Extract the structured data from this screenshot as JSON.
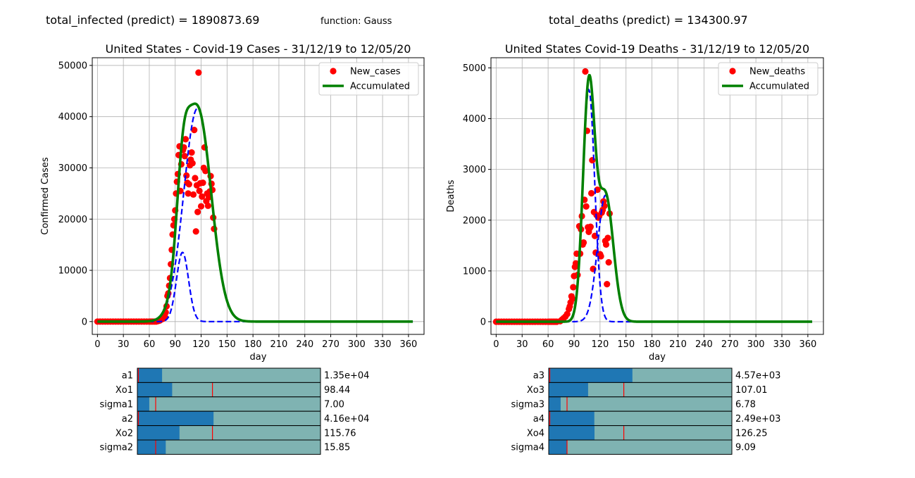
{
  "header": {
    "infected_text": "total_infected (predict) = 1890873.69",
    "function_text": "function: Gauss",
    "deaths_text": "total_deaths (predict) = 134300.97"
  },
  "colors": {
    "points": "#ff0000",
    "accumulated": "#008000",
    "gauss": "#0000ff",
    "slider_fill": "#1f77b4",
    "slider_track": "#7fb3b2",
    "slider_init": "#ff0000",
    "grid": "#b0b0b0"
  },
  "chart_data": [
    {
      "type": "scatter",
      "title": "United States - Covid-19 Cases - 31/12/19 to 12/05/20",
      "xlabel": "day",
      "ylabel": "Confirmed Cases",
      "xlim": [
        -6,
        378
      ],
      "ylim": [
        -2500,
        51500
      ],
      "xticks": [
        0,
        30,
        60,
        90,
        120,
        150,
        180,
        210,
        240,
        270,
        300,
        330,
        360
      ],
      "yticks": [
        0,
        10000,
        20000,
        30000,
        40000,
        50000
      ],
      "grid": true,
      "legend_position": "top-right",
      "legend": [
        "New_cases",
        "Accumulated"
      ],
      "gaussians": [
        {
          "a": 13500,
          "mu": 98.44,
          "sigma": 7.0
        },
        {
          "a": 41600,
          "mu": 115.76,
          "sigma": 15.85
        }
      ],
      "x_range": [
        0,
        365
      ],
      "series": [
        {
          "name": "New_cases",
          "points": [
            [
              0,
              0
            ],
            [
              3,
              0
            ],
            [
              6,
              0
            ],
            [
              9,
              0
            ],
            [
              12,
              0
            ],
            [
              15,
              0
            ],
            [
              18,
              0
            ],
            [
              21,
              0
            ],
            [
              24,
              0
            ],
            [
              27,
              0
            ],
            [
              30,
              0
            ],
            [
              33,
              0
            ],
            [
              36,
              0
            ],
            [
              39,
              0
            ],
            [
              42,
              0
            ],
            [
              45,
              0
            ],
            [
              48,
              0
            ],
            [
              51,
              0
            ],
            [
              54,
              0
            ],
            [
              57,
              0
            ],
            [
              60,
              0
            ],
            [
              62,
              0
            ],
            [
              64,
              0
            ],
            [
              66,
              0
            ],
            [
              68,
              0
            ],
            [
              70,
              100
            ],
            [
              72,
              200
            ],
            [
              74,
              400
            ],
            [
              76,
              600
            ],
            [
              78,
              1000
            ],
            [
              79,
              1800
            ],
            [
              80,
              3000
            ],
            [
              81,
              5000
            ],
            [
              82,
              5500
            ],
            [
              83,
              7000
            ],
            [
              84,
              8500
            ],
            [
              85,
              11200
            ],
            [
              86,
              14000
            ],
            [
              87,
              17000
            ],
            [
              88,
              18800
            ],
            [
              89,
              20000
            ],
            [
              90,
              21700
            ],
            [
              91,
              25000
            ],
            [
              92,
              27300
            ],
            [
              93,
              28800
            ],
            [
              94,
              32500
            ],
            [
              95,
              34200
            ],
            [
              96,
              25500
            ],
            [
              97,
              30700
            ],
            [
              99,
              33500
            ],
            [
              100,
              34000
            ],
            [
              101,
              32300
            ],
            [
              102,
              35600
            ],
            [
              103,
              28500
            ],
            [
              104,
              27100
            ],
            [
              105,
              25000
            ],
            [
              106,
              26800
            ],
            [
              107,
              30500
            ],
            [
              108,
              31600
            ],
            [
              109,
              33000
            ],
            [
              110,
              30900
            ],
            [
              111,
              24800
            ],
            [
              112,
              37400
            ],
            [
              113,
              28000
            ],
            [
              114,
              17600
            ],
            [
              115,
              26600
            ],
            [
              116,
              21400
            ],
            [
              117,
              48600
            ],
            [
              118,
              25500
            ],
            [
              119,
              27000
            ],
            [
              120,
              22500
            ],
            [
              121,
              24400
            ],
            [
              122,
              27100
            ],
            [
              123,
              30000
            ],
            [
              124,
              34000
            ],
            [
              125,
              29400
            ],
            [
              126,
              23500
            ],
            [
              127,
              25000
            ],
            [
              128,
              22600
            ],
            [
              129,
              24300
            ],
            [
              130,
              25400
            ],
            [
              131,
              28400
            ],
            [
              132,
              26900
            ],
            [
              133,
              25700
            ],
            [
              134,
              20300
            ],
            [
              135,
              18100
            ]
          ]
        },
        {
          "name": "Accumulated",
          "values": "sum"
        }
      ]
    },
    {
      "type": "scatter",
      "title": "United States Covid-19 Deaths - 31/12/19 to 12/05/20",
      "xlabel": "day",
      "ylabel": "Deaths",
      "xlim": [
        -6,
        378
      ],
      "ylim": [
        -250,
        5200
      ],
      "xticks": [
        0,
        30,
        60,
        90,
        120,
        150,
        180,
        210,
        240,
        270,
        300,
        330,
        360
      ],
      "yticks": [
        0,
        1000,
        2000,
        3000,
        4000,
        5000
      ],
      "grid": true,
      "legend_position": "top-right",
      "legend": [
        "New_deaths",
        "Accumulated"
      ],
      "gaussians": [
        {
          "a": 4570,
          "mu": 107.01,
          "sigma": 6.78
        },
        {
          "a": 2490,
          "mu": 126.25,
          "sigma": 9.09
        }
      ],
      "x_range": [
        0,
        365
      ],
      "series": [
        {
          "name": "New_deaths",
          "points": [
            [
              0,
              0
            ],
            [
              3,
              0
            ],
            [
              6,
              0
            ],
            [
              9,
              0
            ],
            [
              12,
              0
            ],
            [
              15,
              0
            ],
            [
              18,
              0
            ],
            [
              21,
              0
            ],
            [
              24,
              0
            ],
            [
              27,
              0
            ],
            [
              30,
              0
            ],
            [
              33,
              0
            ],
            [
              36,
              0
            ],
            [
              39,
              0
            ],
            [
              42,
              0
            ],
            [
              45,
              0
            ],
            [
              48,
              0
            ],
            [
              51,
              0
            ],
            [
              54,
              0
            ],
            [
              57,
              0
            ],
            [
              60,
              0
            ],
            [
              62,
              0
            ],
            [
              64,
              0
            ],
            [
              66,
              0
            ],
            [
              68,
              0
            ],
            [
              70,
              0
            ],
            [
              74,
              10
            ],
            [
              76,
              40
            ],
            [
              78,
              70
            ],
            [
              80,
              100
            ],
            [
              82,
              150
            ],
            [
              84,
              250
            ],
            [
              85,
              300
            ],
            [
              86,
              380
            ],
            [
              87,
              500
            ],
            [
              88,
              450
            ],
            [
              89,
              680
            ],
            [
              90,
              900
            ],
            [
              91,
              1080
            ],
            [
              92,
              1150
            ],
            [
              93,
              1340
            ],
            [
              94,
              920
            ],
            [
              96,
              1880
            ],
            [
              97,
              1340
            ],
            [
              98,
              1820
            ],
            [
              99,
              2080
            ],
            [
              100,
              1520
            ],
            [
              101,
              1560
            ],
            [
              102,
              2400
            ],
            [
              103,
              4930
            ],
            [
              104,
              2270
            ],
            [
              105,
              3760
            ],
            [
              106,
              1860
            ],
            [
              107,
              1770
            ],
            [
              108,
              1840
            ],
            [
              109,
              1870
            ],
            [
              110,
              2530
            ],
            [
              111,
              3180
            ],
            [
              112,
              1040
            ],
            [
              113,
              2160
            ],
            [
              114,
              1690
            ],
            [
              115,
              1360
            ],
            [
              116,
              2100
            ],
            [
              117,
              2600
            ],
            [
              118,
              2050
            ],
            [
              119,
              2080
            ],
            [
              120,
              1330
            ],
            [
              121,
              1290
            ],
            [
              122,
              2150
            ],
            [
              123,
              2200
            ],
            [
              124,
              2370
            ],
            [
              125,
              2280
            ],
            [
              126,
              1590
            ],
            [
              127,
              1520
            ],
            [
              128,
              740
            ],
            [
              129,
              1650
            ],
            [
              130,
              1170
            ],
            [
              131,
              2130
            ]
          ]
        },
        {
          "name": "Accumulated",
          "values": "sum"
        }
      ]
    }
  ],
  "sliders": {
    "left": [
      {
        "label": "a1",
        "value_text": "1.35e+04",
        "fraction": 0.135,
        "init_fraction": 0.0
      },
      {
        "label": "Xo1",
        "value_text": "98.44",
        "fraction": 0.19,
        "init_fraction": 0.41
      },
      {
        "label": "sigma1",
        "value_text": "7.00",
        "fraction": 0.065,
        "init_fraction": 0.1
      },
      {
        "label": "a2",
        "value_text": "4.16e+04",
        "fraction": 0.416,
        "init_fraction": 0.0
      },
      {
        "label": "Xo2",
        "value_text": "115.76",
        "fraction": 0.23,
        "init_fraction": 0.41
      },
      {
        "label": "sigma2",
        "value_text": "15.85",
        "fraction": 0.155,
        "init_fraction": 0.1
      }
    ],
    "right": [
      {
        "label": "a3",
        "value_text": "4.57e+03",
        "fraction": 0.457,
        "init_fraction": 0.0
      },
      {
        "label": "Xo3",
        "value_text": "107.01",
        "fraction": 0.215,
        "init_fraction": 0.41
      },
      {
        "label": "sigma3",
        "value_text": "6.78",
        "fraction": 0.065,
        "init_fraction": 0.1
      },
      {
        "label": "a4",
        "value_text": "2.49e+03",
        "fraction": 0.249,
        "init_fraction": 0.0
      },
      {
        "label": "Xo4",
        "value_text": "126.25",
        "fraction": 0.25,
        "init_fraction": 0.41
      },
      {
        "label": "sigma4",
        "value_text": "9.09",
        "fraction": 0.1,
        "init_fraction": 0.1
      }
    ]
  }
}
